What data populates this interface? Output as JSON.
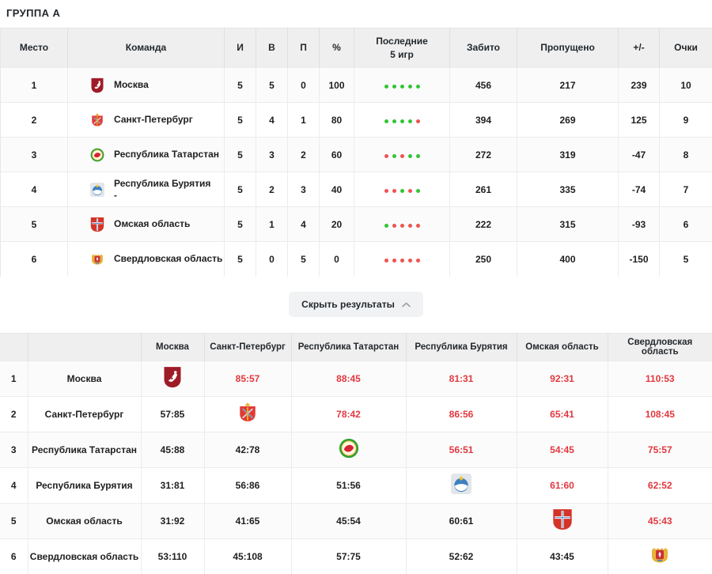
{
  "title": "ГРУППА А",
  "colors": {
    "win_dot": "#32c533",
    "loss_dot": "#ef5350",
    "win_score": "#e2383f",
    "header_bg": "#efefef"
  },
  "standings": {
    "columns": [
      "Место",
      "Команда",
      "И",
      "В",
      "П",
      "%",
      "Последние\n5 игр",
      "Забито",
      "Пропущено",
      "+/-",
      "Очки"
    ],
    "rows": [
      {
        "place": 1,
        "team": "Москва",
        "note": "",
        "logo": "moscow",
        "games": 5,
        "wins": 5,
        "losses": 0,
        "pct": 100,
        "last5": [
          "w",
          "w",
          "w",
          "w",
          "w"
        ],
        "scored": 456,
        "conceded": 217,
        "diff": 239,
        "points": 10
      },
      {
        "place": 2,
        "team": "Санкт-Петербург",
        "note": "",
        "logo": "spb",
        "games": 5,
        "wins": 4,
        "losses": 1,
        "pct": 80,
        "last5": [
          "w",
          "w",
          "w",
          "w",
          "l"
        ],
        "scored": 394,
        "conceded": 269,
        "diff": 125,
        "points": 9
      },
      {
        "place": 3,
        "team": "Республика Татарстан",
        "note": "",
        "logo": "tatarstan",
        "games": 5,
        "wins": 3,
        "losses": 2,
        "pct": 60,
        "last5": [
          "l",
          "w",
          "l",
          "w",
          "w"
        ],
        "scored": 272,
        "conceded": 319,
        "diff": -47,
        "points": 8
      },
      {
        "place": 4,
        "team": "Республика Бурятия",
        "note": "-",
        "logo": "buryatia",
        "games": 5,
        "wins": 2,
        "losses": 3,
        "pct": 40,
        "last5": [
          "l",
          "l",
          "w",
          "l",
          "w"
        ],
        "scored": 261,
        "conceded": 335,
        "diff": -74,
        "points": 7
      },
      {
        "place": 5,
        "team": "Омская область",
        "note": "",
        "logo": "omsk",
        "games": 5,
        "wins": 1,
        "losses": 4,
        "pct": 20,
        "last5": [
          "w",
          "l",
          "l",
          "l",
          "l"
        ],
        "scored": 222,
        "conceded": 315,
        "diff": -93,
        "points": 6
      },
      {
        "place": 6,
        "team": "Свердловская область",
        "note": "",
        "logo": "sverdlovsk",
        "games": 5,
        "wins": 0,
        "losses": 5,
        "pct": 0,
        "last5": [
          "l",
          "l",
          "l",
          "l",
          "l"
        ],
        "scored": 250,
        "conceded": 400,
        "diff": -150,
        "points": 5
      }
    ]
  },
  "hide_button": {
    "label": "Скрыть результаты",
    "icon": "chevron-up"
  },
  "results_matrix": {
    "columns": [
      "Москва",
      "Санкт-Петербург",
      "Республика Татарстан",
      "Республика Бурятия",
      "Омская область",
      "Свердловская область"
    ],
    "rows": [
      {
        "place": 1,
        "team": "Москва",
        "logo": "moscow",
        "cells": [
          null,
          {
            "score": "85:57",
            "result": "win"
          },
          {
            "score": "88:45",
            "result": "win"
          },
          {
            "score": "81:31",
            "result": "win"
          },
          {
            "score": "92:31",
            "result": "win"
          },
          {
            "score": "110:53",
            "result": "win"
          }
        ]
      },
      {
        "place": 2,
        "team": "Санкт-Петербург",
        "logo": "spb",
        "cells": [
          {
            "score": "57:85",
            "result": "loss"
          },
          null,
          {
            "score": "78:42",
            "result": "win"
          },
          {
            "score": "86:56",
            "result": "win"
          },
          {
            "score": "65:41",
            "result": "win"
          },
          {
            "score": "108:45",
            "result": "win"
          }
        ]
      },
      {
        "place": 3,
        "team": "Республика Татарстан",
        "logo": "tatarstan",
        "cells": [
          {
            "score": "45:88",
            "result": "loss"
          },
          {
            "score": "42:78",
            "result": "loss"
          },
          null,
          {
            "score": "56:51",
            "result": "win"
          },
          {
            "score": "54:45",
            "result": "win"
          },
          {
            "score": "75:57",
            "result": "win"
          }
        ]
      },
      {
        "place": 4,
        "team": "Республика Бурятия",
        "logo": "buryatia",
        "cells": [
          {
            "score": "31:81",
            "result": "loss"
          },
          {
            "score": "56:86",
            "result": "loss"
          },
          {
            "score": "51:56",
            "result": "loss"
          },
          null,
          {
            "score": "61:60",
            "result": "win"
          },
          {
            "score": "62:52",
            "result": "win"
          }
        ]
      },
      {
        "place": 5,
        "team": "Омская область",
        "logo": "omsk",
        "cells": [
          {
            "score": "31:92",
            "result": "loss"
          },
          {
            "score": "41:65",
            "result": "loss"
          },
          {
            "score": "45:54",
            "result": "loss"
          },
          {
            "score": "60:61",
            "result": "loss"
          },
          null,
          {
            "score": "45:43",
            "result": "win"
          }
        ]
      },
      {
        "place": 6,
        "team": "Свердловская область",
        "logo": "sverdlovsk",
        "cells": [
          {
            "score": "53:110",
            "result": "loss"
          },
          {
            "score": "45:108",
            "result": "loss"
          },
          {
            "score": "57:75",
            "result": "loss"
          },
          {
            "score": "52:62",
            "result": "loss"
          },
          {
            "score": "43:45",
            "result": "loss"
          },
          null
        ]
      }
    ]
  }
}
